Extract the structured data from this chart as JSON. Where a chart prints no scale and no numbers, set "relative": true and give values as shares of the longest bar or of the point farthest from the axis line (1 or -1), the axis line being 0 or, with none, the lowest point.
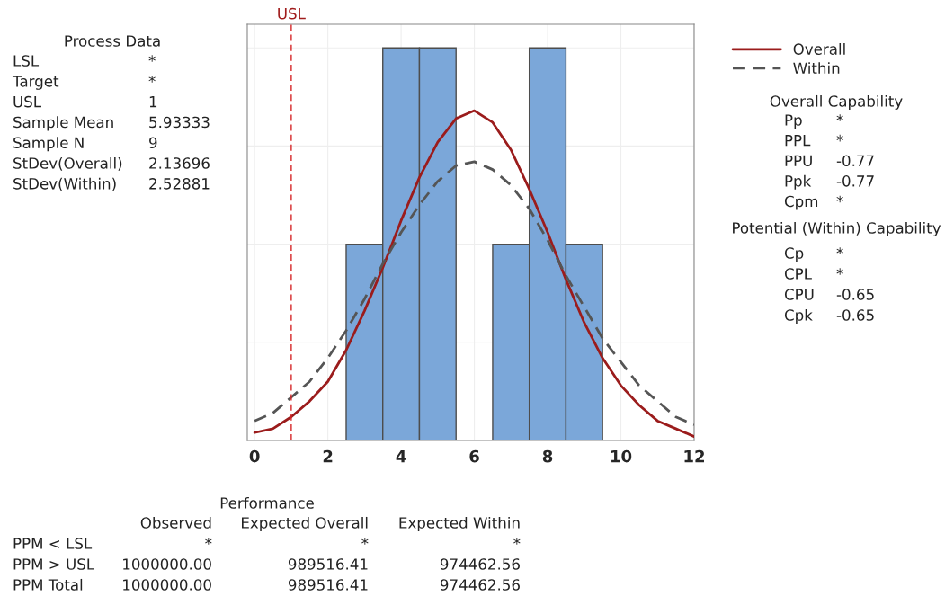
{
  "chart_data": {
    "type": "histogram",
    "relative": true,
    "legend": "right",
    "grid": true,
    "tick_labels": "x",
    "xlim": [
      -0.2,
      12
    ],
    "xticks": [
      0,
      2,
      4,
      6,
      8,
      10,
      12
    ],
    "series": [
      {
        "color": "#7ba7d9",
        "bins": [
          2.5,
          3.5,
          4.5,
          5.5,
          6.5,
          7.5,
          8.5,
          9.5
        ],
        "values": [
          0.5,
          1,
          1,
          0,
          0.5,
          1,
          0.5
        ]
      },
      {
        "type": "line",
        "name": "Overall",
        "color": "#9b1c1c",
        "line_style": "solid",
        "x": [
          0,
          0.5,
          1,
          1.5,
          2,
          2.5,
          3,
          3.5,
          4,
          4.5,
          5,
          5.5,
          6,
          6.5,
          7,
          7.5,
          8,
          8.5,
          9,
          9.5,
          10,
          10.5,
          11,
          11.5,
          12
        ],
        "values": [
          0.02,
          0.03,
          0.06,
          0.1,
          0.15,
          0.23,
          0.33,
          0.44,
          0.56,
          0.67,
          0.76,
          0.82,
          0.84,
          0.81,
          0.74,
          0.64,
          0.53,
          0.41,
          0.3,
          0.21,
          0.14,
          0.09,
          0.05,
          0.03,
          0.01
        ]
      },
      {
        "type": "line",
        "name": "Within",
        "color": "#555555",
        "line_style": "dashed",
        "x": [
          0,
          0.5,
          1,
          1.5,
          2,
          2.5,
          3,
          3.5,
          4,
          4.5,
          5,
          5.5,
          6,
          6.5,
          7,
          7.5,
          8,
          8.5,
          9,
          9.5,
          10,
          10.5,
          11,
          11.5,
          12
        ],
        "values": [
          0.05,
          0.07,
          0.11,
          0.15,
          0.21,
          0.28,
          0.36,
          0.45,
          0.53,
          0.6,
          0.66,
          0.7,
          0.71,
          0.69,
          0.65,
          0.59,
          0.51,
          0.42,
          0.34,
          0.26,
          0.2,
          0.14,
          0.1,
          0.06,
          0.04
        ]
      }
    ],
    "ref_lines": [
      {
        "axis": "x",
        "value": 1,
        "label": "USL",
        "color": "#d62728",
        "line_style": "dashed"
      }
    ],
    "annotations": [
      "Process Data",
      "LSL",
      "*",
      "Target",
      "*",
      "USL",
      "1",
      "Sample Mean",
      "5.93333",
      "Sample N",
      "9",
      "StDev(Overall)",
      "2.13696",
      "StDev(Within)",
      "2.52881",
      "Overall Capability",
      "Pp",
      "*",
      "PPL",
      "*",
      "PPU",
      "-0.77",
      "Ppk",
      "-0.77",
      "Cpm",
      "*",
      "Potential (Within) Capability",
      "Cp",
      "*",
      "CPL",
      "*",
      "CPU",
      "-0.65",
      "Cpk",
      "-0.65",
      "Performance",
      "Observed",
      "Expected Overall",
      "Expected Within",
      "PPM < LSL",
      "*",
      "*",
      "*",
      "PPM > USL",
      "1000000.00",
      "989516.41",
      "974462.56",
      "PPM Total",
      "1000000.00",
      "989516.41",
      "974462.56"
    ]
  }
}
